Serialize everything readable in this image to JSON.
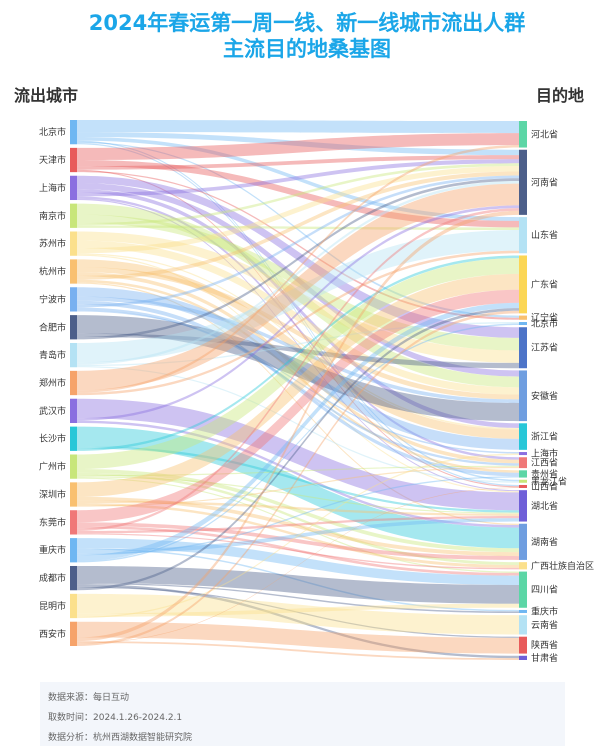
{
  "title_line1": "2024年春运第一周一线、新一线城市流出人群",
  "title_line2": "主流目的地桑基图",
  "left_header": "流出城市",
  "right_header": "目的地",
  "footer": {
    "source": "数据来源：每日互动",
    "period": "取数时间：2024.1.26-2024.2.1",
    "analysis": "数据分析：杭州西湖数据智能研究院"
  },
  "chart_data": {
    "type": "sankey",
    "sources": [
      {
        "name": "北京市",
        "color": "#6fb7f2",
        "weight": 2
      },
      {
        "name": "天津市",
        "color": "#e85b5b",
        "weight": 2
      },
      {
        "name": "上海市",
        "color": "#8b6fe0",
        "weight": 2
      },
      {
        "name": "南京市",
        "color": "#c8e67a",
        "weight": 2
      },
      {
        "name": "苏州市",
        "color": "#fbe08c",
        "weight": 2
      },
      {
        "name": "杭州市",
        "color": "#f9c070",
        "weight": 2
      },
      {
        "name": "宁波市",
        "color": "#78b0f0",
        "weight": 2
      },
      {
        "name": "合肥市",
        "color": "#4d5f8a",
        "weight": 2
      },
      {
        "name": "青岛市",
        "color": "#b4e2f4",
        "weight": 2
      },
      {
        "name": "郑州市",
        "color": "#f6a36a",
        "weight": 2
      },
      {
        "name": "武汉市",
        "color": "#8a6fe0",
        "weight": 2
      },
      {
        "name": "长沙市",
        "color": "#28c7d8",
        "weight": 2
      },
      {
        "name": "广州市",
        "color": "#c8e67a",
        "weight": 2
      },
      {
        "name": "深圳市",
        "color": "#f9c070",
        "weight": 2
      },
      {
        "name": "东莞市",
        "color": "#f07878",
        "weight": 2
      },
      {
        "name": "重庆市",
        "color": "#6fb7f2",
        "weight": 2
      },
      {
        "name": "成都市",
        "color": "#4d5f8a",
        "weight": 2
      },
      {
        "name": "昆明市",
        "color": "#fbe08c",
        "weight": 2
      },
      {
        "name": "西安市",
        "color": "#f6a36a",
        "weight": 2
      }
    ],
    "targets": [
      {
        "name": "河北省",
        "color": "#5cd6a6",
        "weight": 2.2
      },
      {
        "name": "河南省",
        "color": "#4d5f8a",
        "weight": 5.4
      },
      {
        "name": "山东省",
        "color": "#b4e2f4",
        "weight": 3
      },
      {
        "name": "广东省",
        "color": "#fbd655",
        "weight": 4.8
      },
      {
        "name": "辽宁省",
        "color": "#f9c070",
        "weight": 0.35
      },
      {
        "name": "北京市",
        "color": "#6fb7f2",
        "weight": 0.25
      },
      {
        "name": "江苏省",
        "color": "#4d74c8",
        "weight": 3.4
      },
      {
        "name": "安徽省",
        "color": "#6f9ee0",
        "weight": 4.2
      },
      {
        "name": "浙江省",
        "color": "#28c7d8",
        "weight": 2.2
      },
      {
        "name": "上海市",
        "color": "#8b6fe0",
        "weight": 0.25
      },
      {
        "name": "江西省",
        "color": "#f07878",
        "weight": 0.9
      },
      {
        "name": "贵州省",
        "color": "#5cd6a6",
        "weight": 0.6
      },
      {
        "name": "黑龙江省",
        "color": "#c8e67a",
        "weight": 0.25
      },
      {
        "name": "山西省",
        "color": "#e85b5b",
        "weight": 0.25
      },
      {
        "name": "湖北省",
        "color": "#6f5fd8",
        "weight": 2.6
      },
      {
        "name": "湖南省",
        "color": "#6f9ee0",
        "weight": 3
      },
      {
        "name": "广西壮族自治区",
        "color": "#fbe08c",
        "weight": 0.6
      },
      {
        "name": "四川省",
        "color": "#5cd6a6",
        "weight": 3
      },
      {
        "name": "重庆市",
        "color": "#6fb7f2",
        "weight": 0.25
      },
      {
        "name": "云南省",
        "color": "#b4e2f4",
        "weight": 1.6
      },
      {
        "name": "陕西省",
        "color": "#e85b5b",
        "weight": 1.4
      },
      {
        "name": "甘肃省",
        "color": "#6f5fd8",
        "weight": 0.35
      }
    ],
    "links": [
      [
        "北京市",
        "河北省",
        1.0
      ],
      [
        "北京市",
        "河南省",
        0.4
      ],
      [
        "北京市",
        "山东省",
        0.3
      ],
      [
        "北京市",
        "黑龙江省",
        0.1
      ],
      [
        "北京市",
        "辽宁省",
        0.1
      ],
      [
        "北京市",
        "山西省",
        0.1
      ],
      [
        "天津市",
        "河北省",
        1.0
      ],
      [
        "天津市",
        "山东省",
        0.5
      ],
      [
        "天津市",
        "河南省",
        0.3
      ],
      [
        "天津市",
        "山西省",
        0.1
      ],
      [
        "天津市",
        "辽宁省",
        0.1
      ],
      [
        "上海市",
        "江苏省",
        0.6
      ],
      [
        "上海市",
        "安徽省",
        0.5
      ],
      [
        "上海市",
        "浙江省",
        0.3
      ],
      [
        "上海市",
        "河南省",
        0.3
      ],
      [
        "上海市",
        "江西省",
        0.2
      ],
      [
        "上海市",
        "湖北省",
        0.1
      ],
      [
        "南京市",
        "安徽省",
        0.9
      ],
      [
        "南京市",
        "江苏省",
        0.7
      ],
      [
        "南京市",
        "河南省",
        0.2
      ],
      [
        "南京市",
        "山东省",
        0.2
      ],
      [
        "苏州市",
        "江苏省",
        0.7
      ],
      [
        "苏州市",
        "安徽省",
        0.6
      ],
      [
        "苏州市",
        "河南省",
        0.4
      ],
      [
        "苏州市",
        "浙江省",
        0.1
      ],
      [
        "苏州市",
        "湖北省",
        0.1
      ],
      [
        "杭州市",
        "浙江省",
        0.6
      ],
      [
        "杭州市",
        "安徽省",
        0.4
      ],
      [
        "杭州市",
        "江西省",
        0.3
      ],
      [
        "杭州市",
        "河南省",
        0.3
      ],
      [
        "杭州市",
        "贵州省",
        0.2
      ],
      [
        "杭州市",
        "湖南省",
        0.1
      ],
      [
        "宁波市",
        "浙江省",
        0.7
      ],
      [
        "宁波市",
        "安徽省",
        0.3
      ],
      [
        "宁波市",
        "贵州省",
        0.3
      ],
      [
        "宁波市",
        "河南省",
        0.2
      ],
      [
        "宁波市",
        "江西省",
        0.2
      ],
      [
        "宁波市",
        "上海市",
        0.1
      ],
      [
        "合肥市",
        "安徽省",
        1.5
      ],
      [
        "合肥市",
        "江苏省",
        0.3
      ],
      [
        "合肥市",
        "河南省",
        0.2
      ],
      [
        "青岛市",
        "山东省",
        1.6
      ],
      [
        "青岛市",
        "河南省",
        0.2
      ],
      [
        "青岛市",
        "北京市",
        0.1
      ],
      [
        "青岛市",
        "黑龙江省",
        0.1
      ],
      [
        "郑州市",
        "河南省",
        1.6
      ],
      [
        "郑州市",
        "河北省",
        0.2
      ],
      [
        "郑州市",
        "山东省",
        0.2
      ],
      [
        "武汉市",
        "湖北省",
        1.6
      ],
      [
        "武汉市",
        "河南省",
        0.2
      ],
      [
        "武汉市",
        "湖南省",
        0.2
      ],
      [
        "长沙市",
        "湖南省",
        1.6
      ],
      [
        "长沙市",
        "湖北省",
        0.2
      ],
      [
        "长沙市",
        "广东省",
        0.2
      ],
      [
        "广州市",
        "广东省",
        1.2
      ],
      [
        "广州市",
        "湖南省",
        0.3
      ],
      [
        "广州市",
        "广西壮族自治区",
        0.2
      ],
      [
        "广州市",
        "江西省",
        0.1
      ],
      [
        "广州市",
        "湖北省",
        0.1
      ],
      [
        "广州市",
        "四川省",
        0.1
      ],
      [
        "深圳市",
        "广东省",
        1.2
      ],
      [
        "深圳市",
        "湖南省",
        0.3
      ],
      [
        "深圳市",
        "湖北省",
        0.2
      ],
      [
        "深圳市",
        "广西壮族自治区",
        0.2
      ],
      [
        "深圳市",
        "江西省",
        0.1
      ],
      [
        "东莞市",
        "广东省",
        1.0
      ],
      [
        "东莞市",
        "湖南省",
        0.3
      ],
      [
        "东莞市",
        "四川省",
        0.2
      ],
      [
        "东莞市",
        "河南省",
        0.2
      ],
      [
        "东莞市",
        "湖北省",
        0.2
      ],
      [
        "东莞市",
        "广西壮族自治区",
        0.1
      ],
      [
        "重庆市",
        "四川省",
        0.7
      ],
      [
        "重庆市",
        "重庆市",
        0.1
      ],
      [
        "重庆市",
        "湖北省",
        0.3
      ],
      [
        "重庆市",
        "贵州省",
        0.1
      ],
      [
        "重庆市",
        "广东省",
        0.4
      ],
      [
        "重庆市",
        "北京市",
        0.1
      ],
      [
        "成都市",
        "四川省",
        1.4
      ],
      [
        "成都市",
        "重庆市",
        0.1
      ],
      [
        "成都市",
        "甘肃省",
        0.2
      ],
      [
        "成都市",
        "陕西省",
        0.1
      ],
      [
        "成都市",
        "广东省",
        0.2
      ],
      [
        "昆明市",
        "云南省",
        1.6
      ],
      [
        "昆明市",
        "四川省",
        0.3
      ],
      [
        "昆明市",
        "上海市",
        0.1
      ],
      [
        "西安市",
        "陕西省",
        1.3
      ],
      [
        "西安市",
        "河南省",
        0.3
      ],
      [
        "西安市",
        "甘肃省",
        0.15
      ],
      [
        "西安市",
        "山西省",
        0.05
      ],
      [
        "西安市",
        "广东省",
        0.2
      ]
    ]
  }
}
